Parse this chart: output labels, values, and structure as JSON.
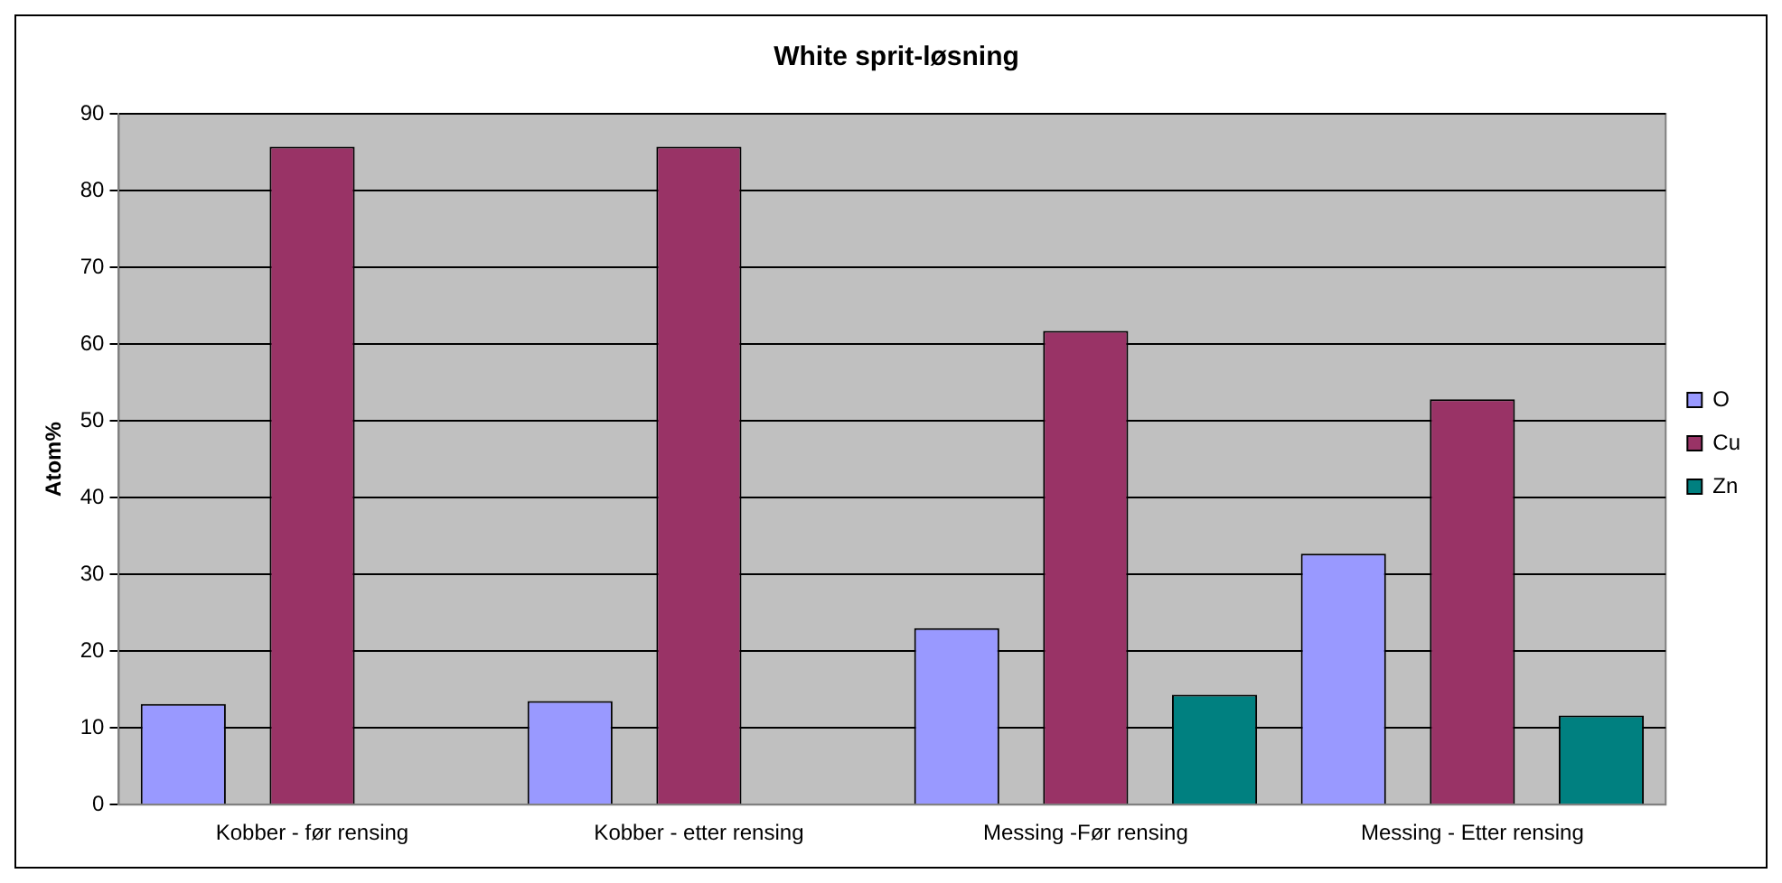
{
  "chart_data": {
    "type": "bar",
    "title": "White sprit-løsning",
    "ylabel": "Atom%",
    "categories": [
      "Kobber - før rensing",
      "Kobber - etter rensing",
      "Messing -Før rensing",
      "Messing - Etter rensing"
    ],
    "series": [
      {
        "name": "O",
        "color": "#9999ff",
        "values": [
          13.1,
          13.5,
          23,
          32.7
        ]
      },
      {
        "name": "Cu",
        "color": "#993366",
        "values": [
          85.7,
          85.7,
          61.7,
          52.8
        ]
      },
      {
        "name": "Zn",
        "color": "#008080",
        "values": [
          null,
          null,
          14.3,
          11.6
        ]
      }
    ],
    "ylim": [
      0,
      90
    ],
    "yticks": [
      0,
      10,
      20,
      30,
      40,
      50,
      60,
      70,
      80,
      90
    ],
    "grid": "y",
    "legend": "right"
  }
}
